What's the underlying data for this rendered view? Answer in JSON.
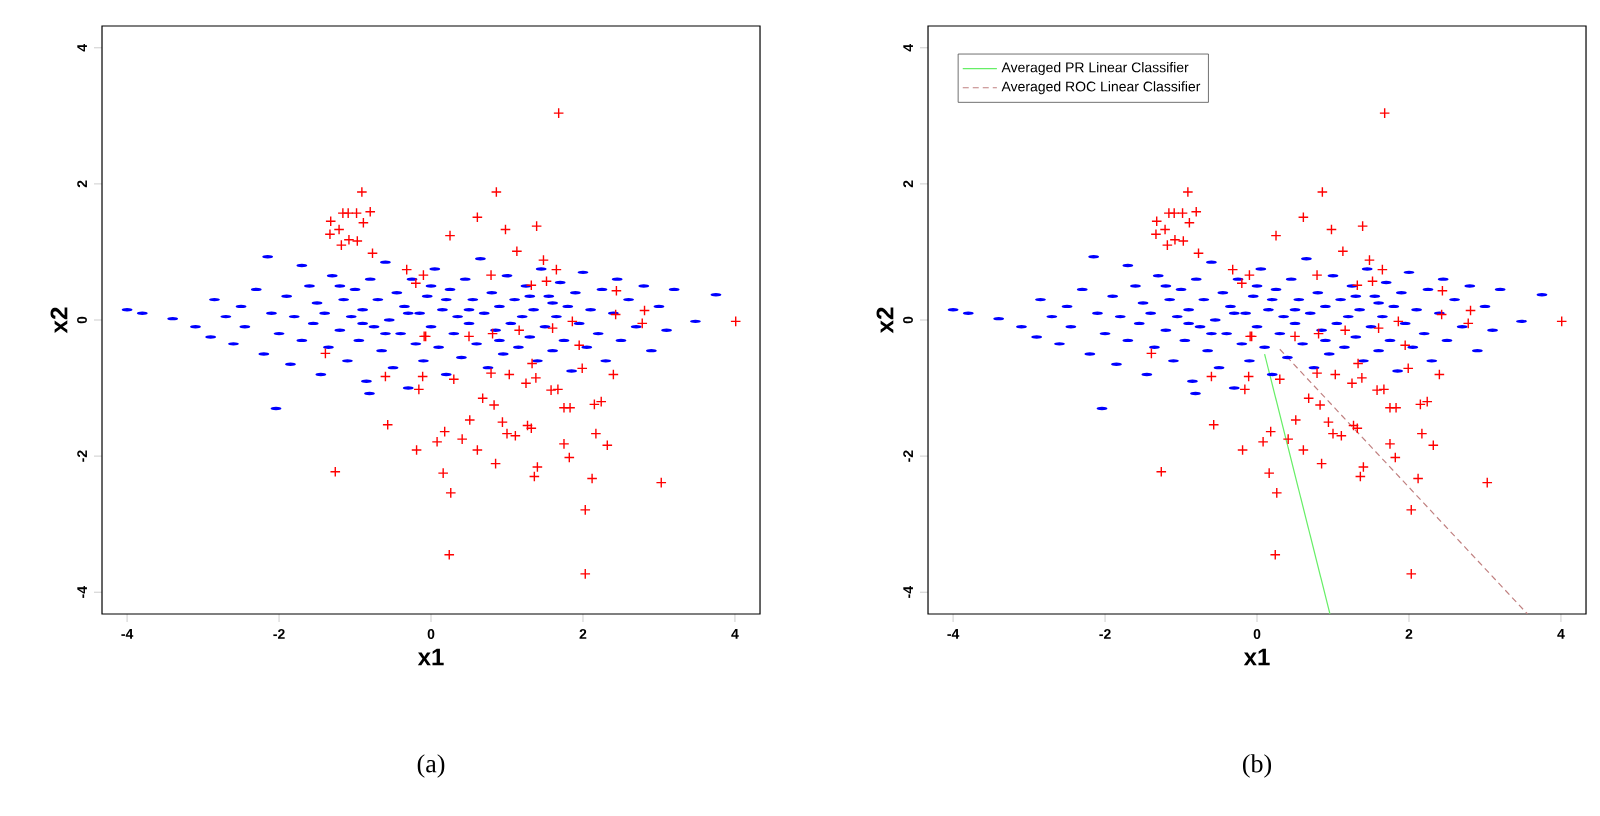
{
  "chart_data": [
    {
      "type": "scatter",
      "xlabel": "x1",
      "ylabel": "x2",
      "xlim": [
        -4.33,
        4.33
      ],
      "ylim": [
        -4.32,
        4.32
      ],
      "xticks": [
        -4,
        -2,
        0,
        2,
        4
      ],
      "yticks": [
        -4,
        -2,
        0,
        2,
        4
      ],
      "annotations": [
        "(a)"
      ],
      "series": [
        {
          "color": "#0000ff",
          "x": [
            -4.0,
            -3.8,
            -3.4,
            -3.1,
            -2.9,
            -2.85,
            -2.7,
            -2.6,
            -2.5,
            -2.45,
            -2.3,
            -2.2,
            -2.15,
            -2.1,
            -2.04,
            -2.0,
            -1.9,
            -1.85,
            -1.8,
            -1.7,
            -1.7,
            -1.6,
            -1.55,
            -1.5,
            -1.45,
            -1.4,
            -1.35,
            -1.3,
            -1.2,
            -1.15,
            -1.1,
            -1.05,
            -1.0,
            -0.95,
            -0.9,
            -0.85,
            -0.81,
            -0.8,
            -0.75,
            -0.7,
            -0.65,
            -0.6,
            -0.55,
            -0.5,
            -0.45,
            -0.4,
            -0.35,
            -0.3,
            -0.25,
            -0.2,
            -0.15,
            -0.1,
            -0.05,
            0.0,
            0.05,
            0.1,
            0.15,
            0.2,
            0.25,
            0.3,
            0.35,
            0.4,
            0.45,
            0.5,
            0.55,
            0.6,
            0.65,
            0.7,
            0.75,
            0.8,
            0.85,
            0.9,
            0.95,
            1.0,
            1.05,
            1.1,
            1.15,
            1.2,
            1.25,
            1.3,
            1.35,
            1.4,
            1.45,
            1.5,
            1.55,
            1.6,
            1.65,
            1.7,
            1.75,
            1.8,
            1.85,
            1.9,
            1.95,
            2.0,
            2.05,
            2.1,
            2.2,
            2.25,
            2.3,
            2.4,
            2.45,
            2.5,
            2.6,
            2.7,
            2.8,
            2.9,
            3.0,
            3.1,
            3.2,
            3.48,
            3.75,
            -0.3,
            0.2,
            -0.6,
            0.9,
            -1.2,
            1.3,
            0.0,
            0.5,
            -0.9,
            1.6
          ],
          "values": [
            0.15,
            0.1,
            0.02,
            -0.1,
            -0.25,
            0.3,
            0.05,
            -0.35,
            0.2,
            -0.1,
            0.45,
            -0.5,
            0.93,
            0.1,
            -1.3,
            -0.2,
            0.35,
            -0.65,
            0.05,
            0.8,
            -0.3,
            0.5,
            -0.05,
            0.25,
            -0.8,
            0.1,
            -0.4,
            0.65,
            -0.15,
            0.3,
            -0.6,
            0.05,
            0.45,
            -0.3,
            0.15,
            -0.9,
            -1.08,
            0.6,
            -0.1,
            0.3,
            -0.45,
            0.85,
            0.0,
            -0.7,
            0.4,
            -0.2,
            0.2,
            -1.0,
            0.6,
            -0.35,
            0.1,
            -0.6,
            0.35,
            -0.1,
            0.75,
            -0.4,
            0.15,
            -0.8,
            0.45,
            -0.2,
            0.05,
            -0.55,
            0.6,
            -0.05,
            0.3,
            -0.35,
            0.9,
            0.1,
            -0.7,
            0.4,
            -0.15,
            0.2,
            -0.5,
            0.65,
            -0.05,
            0.3,
            -0.4,
            0.05,
            0.5,
            -0.25,
            0.15,
            -0.6,
            0.75,
            -0.1,
            0.35,
            -0.45,
            0.05,
            0.55,
            -0.3,
            0.2,
            -0.75,
            0.4,
            -0.05,
            0.7,
            -0.4,
            0.15,
            -0.2,
            0.45,
            -0.6,
            0.1,
            0.6,
            -0.3,
            0.3,
            -0.1,
            0.5,
            -0.45,
            0.2,
            -0.15,
            0.45,
            -0.02,
            0.37,
            0.1,
            0.3,
            -0.2,
            -0.3,
            0.5,
            0.35,
            0.5,
            0.15,
            -0.05,
            0.25
          ]
        },
        {
          "color": "#ff0000",
          "marker": "cross",
          "x": [
            -1.26,
            -0.57,
            -0.6,
            -0.16,
            -0.11,
            0.3,
            -0.19,
            0.08,
            0.18,
            0.16,
            0.26,
            0.24,
            0.41,
            0.51,
            0.61,
            0.68,
            0.83,
            0.85,
            0.79,
            1.03,
            0.94,
            1.0,
            1.11,
            1.27,
            1.32,
            1.25,
            1.38,
            1.33,
            1.4,
            1.36,
            1.58,
            1.67,
            1.75,
            1.83,
            1.75,
            1.82,
            1.99,
            2.15,
            2.24,
            2.17,
            2.32,
            2.12,
            2.03,
            2.03,
            2.4,
            3.03,
            1.95,
            -1.39,
            2.78,
            1.68,
            -0.91,
            0.86,
            -1.32,
            -1.16,
            -1.09,
            -0.98,
            -0.8,
            -0.89,
            -1.21,
            -1.33,
            -1.08,
            -0.97,
            -1.18,
            -0.77,
            0.61,
            0.25,
            0.98,
            1.39,
            1.13,
            1.48,
            1.65,
            1.52,
            1.32,
            0.79,
            -0.32,
            -0.1,
            -0.2,
            2.44,
            2.81,
            2.43,
            4.01,
            1.86,
            1.16,
            1.6,
            0.81,
            -0.09,
            0.5,
            -0.07
          ],
          "values": [
            -2.23,
            -1.54,
            -0.83,
            -1.02,
            -0.83,
            -0.87,
            -1.91,
            -1.79,
            -1.64,
            -2.25,
            -2.54,
            -3.45,
            -1.75,
            -1.47,
            -1.91,
            -1.15,
            -1.25,
            -2.11,
            -0.78,
            -0.8,
            -1.5,
            -1.67,
            -1.7,
            -1.55,
            -1.59,
            -0.93,
            -0.85,
            -0.64,
            -2.16,
            -2.3,
            -1.03,
            -1.02,
            -1.29,
            -1.29,
            -1.82,
            -2.02,
            -0.71,
            -1.24,
            -1.2,
            -1.67,
            -1.84,
            -2.33,
            -2.79,
            -3.73,
            -0.8,
            -2.39,
            -0.37,
            -0.49,
            -0.05,
            3.04,
            1.88,
            1.88,
            1.45,
            1.57,
            1.57,
            1.57,
            1.59,
            1.43,
            1.33,
            1.26,
            1.18,
            1.16,
            1.1,
            0.98,
            1.51,
            1.24,
            1.33,
            1.38,
            1.01,
            0.88,
            0.74,
            0.57,
            0.51,
            0.66,
            0.74,
            0.66,
            0.54,
            0.43,
            0.14,
            0.08,
            -0.02,
            -0.02,
            -0.15,
            -0.12,
            -0.2,
            -0.24,
            -0.24,
            -0.24
          ]
        }
      ]
    },
    {
      "type": "scatter",
      "xlabel": "x1",
      "ylabel": "x2",
      "xlim": [
        -4.33,
        4.33
      ],
      "ylim": [
        -4.32,
        4.32
      ],
      "xticks": [
        -4,
        -2,
        0,
        2,
        4
      ],
      "yticks": [
        -4,
        -2,
        0,
        2,
        4
      ],
      "annotations": [
        "(b)"
      ],
      "legend": "top left",
      "series": [
        {
          "color": "#0000ff",
          "x": [
            -4.0,
            -3.8,
            -3.4,
            -3.1,
            -2.9,
            -2.85,
            -2.7,
            -2.6,
            -2.5,
            -2.45,
            -2.3,
            -2.2,
            -2.15,
            -2.1,
            -2.04,
            -2.0,
            -1.9,
            -1.85,
            -1.8,
            -1.7,
            -1.7,
            -1.6,
            -1.55,
            -1.5,
            -1.45,
            -1.4,
            -1.35,
            -1.3,
            -1.2,
            -1.15,
            -1.1,
            -1.05,
            -1.0,
            -0.95,
            -0.9,
            -0.85,
            -0.81,
            -0.8,
            -0.75,
            -0.7,
            -0.65,
            -0.6,
            -0.55,
            -0.5,
            -0.45,
            -0.4,
            -0.35,
            -0.3,
            -0.25,
            -0.2,
            -0.15,
            -0.1,
            -0.05,
            0.0,
            0.05,
            0.1,
            0.15,
            0.2,
            0.25,
            0.3,
            0.35,
            0.4,
            0.45,
            0.5,
            0.55,
            0.6,
            0.65,
            0.7,
            0.75,
            0.8,
            0.85,
            0.9,
            0.95,
            1.0,
            1.05,
            1.1,
            1.15,
            1.2,
            1.25,
            1.3,
            1.35,
            1.4,
            1.45,
            1.5,
            1.55,
            1.6,
            1.65,
            1.7,
            1.75,
            1.8,
            1.85,
            1.9,
            1.95,
            2.0,
            2.05,
            2.1,
            2.2,
            2.25,
            2.3,
            2.4,
            2.45,
            2.5,
            2.6,
            2.7,
            2.8,
            2.9,
            3.0,
            3.1,
            3.2,
            3.48,
            3.75,
            -0.3,
            0.2,
            -0.6,
            0.9,
            -1.2,
            1.3,
            0.0,
            0.5,
            -0.9,
            1.6
          ],
          "values": [
            0.15,
            0.1,
            0.02,
            -0.1,
            -0.25,
            0.3,
            0.05,
            -0.35,
            0.2,
            -0.1,
            0.45,
            -0.5,
            0.93,
            0.1,
            -1.3,
            -0.2,
            0.35,
            -0.65,
            0.05,
            0.8,
            -0.3,
            0.5,
            -0.05,
            0.25,
            -0.8,
            0.1,
            -0.4,
            0.65,
            -0.15,
            0.3,
            -0.6,
            0.05,
            0.45,
            -0.3,
            0.15,
            -0.9,
            -1.08,
            0.6,
            -0.1,
            0.3,
            -0.45,
            0.85,
            0.0,
            -0.7,
            0.4,
            -0.2,
            0.2,
            -1.0,
            0.6,
            -0.35,
            0.1,
            -0.6,
            0.35,
            -0.1,
            0.75,
            -0.4,
            0.15,
            -0.8,
            0.45,
            -0.2,
            0.05,
            -0.55,
            0.6,
            -0.05,
            0.3,
            -0.35,
            0.9,
            0.1,
            -0.7,
            0.4,
            -0.15,
            0.2,
            -0.5,
            0.65,
            -0.05,
            0.3,
            -0.4,
            0.05,
            0.5,
            -0.25,
            0.15,
            -0.6,
            0.75,
            -0.1,
            0.35,
            -0.45,
            0.05,
            0.55,
            -0.3,
            0.2,
            -0.75,
            0.4,
            -0.05,
            0.7,
            -0.4,
            0.15,
            -0.2,
            0.45,
            -0.6,
            0.1,
            0.6,
            -0.3,
            0.3,
            -0.1,
            0.5,
            -0.45,
            0.2,
            -0.15,
            0.45,
            -0.02,
            0.37,
            0.1,
            0.3,
            -0.2,
            -0.3,
            0.5,
            0.35,
            0.5,
            0.15,
            -0.05,
            0.25
          ]
        },
        {
          "color": "#ff0000",
          "marker": "cross",
          "x": [
            -1.26,
            -0.57,
            -0.6,
            -0.16,
            -0.11,
            0.3,
            -0.19,
            0.08,
            0.18,
            0.16,
            0.26,
            0.24,
            0.41,
            0.51,
            0.61,
            0.68,
            0.83,
            0.85,
            0.79,
            1.03,
            0.94,
            1.0,
            1.11,
            1.27,
            1.32,
            1.25,
            1.38,
            1.33,
            1.4,
            1.36,
            1.58,
            1.67,
            1.75,
            1.83,
            1.75,
            1.82,
            1.99,
            2.15,
            2.24,
            2.17,
            2.32,
            2.12,
            2.03,
            2.03,
            2.4,
            3.03,
            1.95,
            -1.39,
            2.78,
            1.68,
            -0.91,
            0.86,
            -1.32,
            -1.16,
            -1.09,
            -0.98,
            -0.8,
            -0.89,
            -1.21,
            -1.33,
            -1.08,
            -0.97,
            -1.18,
            -0.77,
            0.61,
            0.25,
            0.98,
            1.39,
            1.13,
            1.48,
            1.65,
            1.52,
            1.32,
            0.79,
            -0.32,
            -0.1,
            -0.2,
            2.44,
            2.81,
            2.43,
            4.01,
            1.86,
            1.16,
            1.6,
            0.81,
            -0.09,
            0.5,
            -0.07
          ],
          "values": [
            -2.23,
            -1.54,
            -0.83,
            -1.02,
            -0.83,
            -0.87,
            -1.91,
            -1.79,
            -1.64,
            -2.25,
            -2.54,
            -3.45,
            -1.75,
            -1.47,
            -1.91,
            -1.15,
            -1.25,
            -2.11,
            -0.78,
            -0.8,
            -1.5,
            -1.67,
            -1.7,
            -1.55,
            -1.59,
            -0.93,
            -0.85,
            -0.64,
            -2.16,
            -2.3,
            -1.03,
            -1.02,
            -1.29,
            -1.29,
            -1.82,
            -2.02,
            -0.71,
            -1.24,
            -1.2,
            -1.67,
            -1.84,
            -2.33,
            -2.79,
            -3.73,
            -0.8,
            -2.39,
            -0.37,
            -0.49,
            -0.05,
            3.04,
            1.88,
            1.88,
            1.45,
            1.57,
            1.57,
            1.57,
            1.59,
            1.43,
            1.33,
            1.26,
            1.18,
            1.16,
            1.1,
            0.98,
            1.51,
            1.24,
            1.33,
            1.38,
            1.01,
            0.88,
            0.74,
            0.57,
            0.51,
            0.66,
            0.74,
            0.66,
            0.54,
            0.43,
            0.14,
            0.08,
            -0.02,
            -0.02,
            -0.15,
            -0.12,
            -0.2,
            -0.24,
            -0.24,
            -0.24
          ]
        },
        {
          "name": "Averaged PR Linear Classifier",
          "type": "line",
          "color": "#66ee66",
          "line_style": "solid",
          "marker": "none",
          "x": [
            0.1,
            0.96
          ],
          "values": [
            -0.5,
            -4.32
          ]
        },
        {
          "name": "Averaged ROC Linear Classifier",
          "type": "line",
          "color": "#c08080",
          "line_style": "dashed",
          "marker": "none",
          "x": [
            0.3,
            3.56
          ],
          "values": [
            -0.43,
            -4.32
          ]
        }
      ]
    }
  ]
}
